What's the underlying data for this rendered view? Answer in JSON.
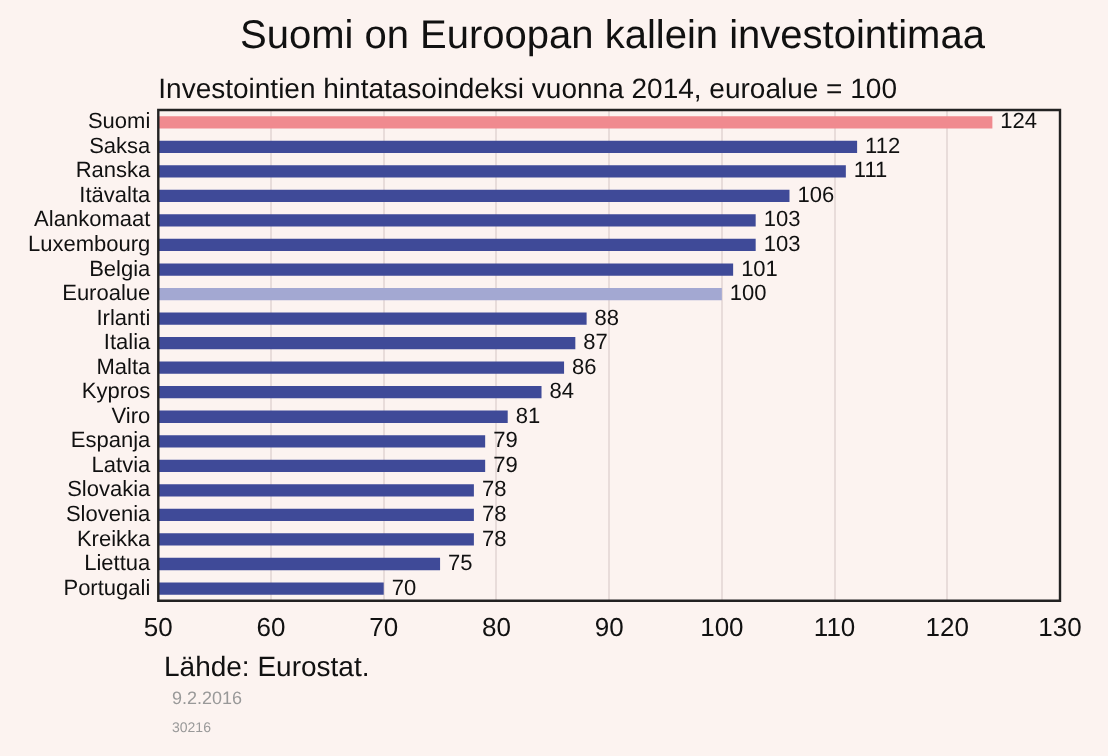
{
  "chart_data": {
    "type": "bar",
    "orientation": "horizontal",
    "title": "Suomi on Euroopan kallein investointimaa",
    "subtitle": "Investointien hintatasoindeksi vuonna 2014, euroalue = 100",
    "categories": [
      "Suomi",
      "Saksa",
      "Ranska",
      "Itävalta",
      "Alankomaat",
      "Luxembourg",
      "Belgia",
      "Euroalue",
      "Irlanti",
      "Italia",
      "Malta",
      "Kypros",
      "Viro",
      "Espanja",
      "Latvia",
      "Slovakia",
      "Slovenia",
      "Kreikka",
      "Liettua",
      "Portugali"
    ],
    "values": [
      124,
      112,
      111,
      106,
      103,
      103,
      101,
      100,
      88,
      87,
      86,
      84,
      81,
      79,
      79,
      78,
      78,
      78,
      75,
      70
    ],
    "colors": [
      "#f08a8f",
      "#3f4a98",
      "#3f4a98",
      "#3f4a98",
      "#3f4a98",
      "#3f4a98",
      "#3f4a98",
      "#a3a8d2",
      "#3f4a98",
      "#3f4a98",
      "#3f4a98",
      "#3f4a98",
      "#3f4a98",
      "#3f4a98",
      "#3f4a98",
      "#3f4a98",
      "#3f4a98",
      "#3f4a98",
      "#3f4a98",
      "#3f4a98"
    ],
    "xlim": [
      50,
      130
    ],
    "xticks": [
      50,
      60,
      70,
      80,
      90,
      100,
      110,
      120,
      130
    ],
    "grid": "x",
    "data_labels": true,
    "legend": false,
    "annotations": [
      "Lähde: Eurostat.",
      "9.2.2016",
      "30216"
    ]
  }
}
